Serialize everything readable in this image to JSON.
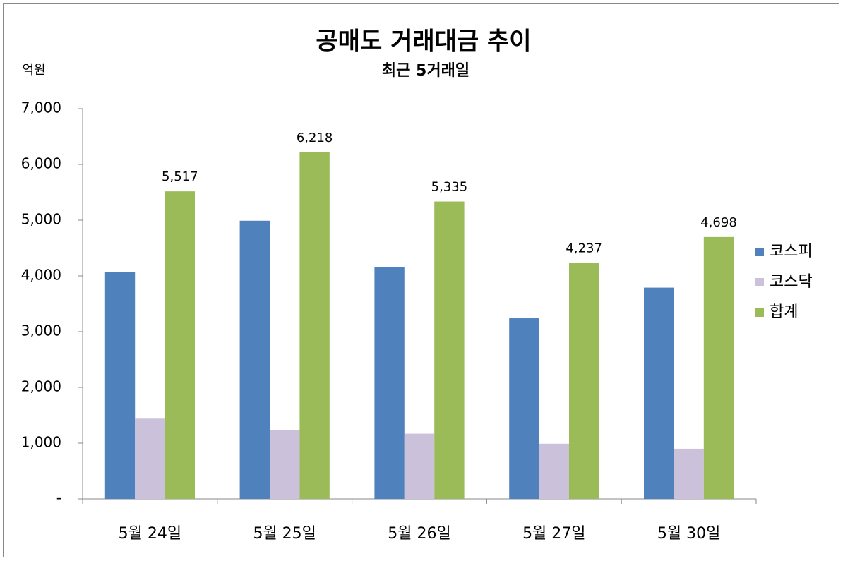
{
  "chart_data": {
    "type": "bar",
    "title": "공매도 거래대금 추이",
    "subtitle": "최근 5거래일",
    "y_label": "억원",
    "categories": [
      "5월 24일",
      "5월 25일",
      "5월 26일",
      "5월 27일",
      "5월 30일"
    ],
    "series": [
      {
        "name": "코스피",
        "color": "#4f81bd",
        "values": [
          4070,
          4990,
          4160,
          3240,
          3790
        ]
      },
      {
        "name": "코스닥",
        "color": "#ccc1da",
        "values": [
          1440,
          1230,
          1170,
          990,
          900
        ]
      },
      {
        "name": "합계",
        "color": "#9bbb59",
        "values": [
          5517,
          6218,
          5335,
          4237,
          4698
        ],
        "value_labels": [
          "5,517",
          "6,218",
          "5,335",
          "4,237",
          "4,698"
        ]
      }
    ],
    "ylim": [
      0,
      7000
    ],
    "yticks": [
      {
        "value": 0,
        "label": "-"
      },
      {
        "value": 1000,
        "label": "1,000"
      },
      {
        "value": 2000,
        "label": "2,000"
      },
      {
        "value": 3000,
        "label": "3,000"
      },
      {
        "value": 4000,
        "label": "4,000"
      },
      {
        "value": 5000,
        "label": "5,000"
      },
      {
        "value": 6000,
        "label": "6,000"
      },
      {
        "value": 7000,
        "label": "7,000"
      }
    ],
    "legend": "right"
  }
}
